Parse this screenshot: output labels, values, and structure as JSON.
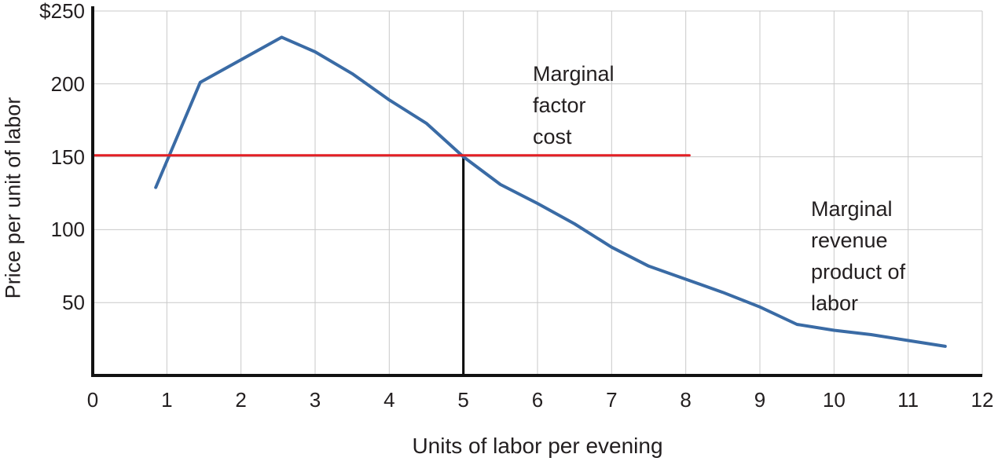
{
  "chart_data": {
    "type": "line",
    "title": "",
    "xlabel": "Units of labor per evening",
    "ylabel": "Price per unit of labor",
    "xlim": [
      0,
      12
    ],
    "ylim": [
      0,
      250
    ],
    "x_ticks": [
      0,
      1,
      2,
      3,
      4,
      5,
      6,
      7,
      8,
      9,
      10,
      11,
      12
    ],
    "x_tick_labels": [
      "0",
      "1",
      "2",
      "3",
      "4",
      "5",
      "6",
      "7",
      "8",
      "9",
      "10",
      "11",
      "12"
    ],
    "y_ticks": [
      50,
      100,
      150,
      200,
      250
    ],
    "y_tick_labels": [
      "50",
      "100",
      "150",
      "200",
      "$250"
    ],
    "grid": true,
    "grid_color": "#c9c9c9",
    "axis_color": "#121212",
    "legend_position": "none",
    "series": [
      {
        "name": "Marginal revenue product of labor",
        "data_name": "mrp-curve",
        "color": "#3a6ba5",
        "width": 4,
        "points": [
          [
            0.85,
            129
          ],
          [
            1.45,
            201
          ],
          [
            2.55,
            232
          ],
          [
            3,
            222
          ],
          [
            3.5,
            207
          ],
          [
            4,
            189
          ],
          [
            4.5,
            173
          ],
          [
            5,
            150
          ],
          [
            5.5,
            131
          ],
          [
            6,
            118
          ],
          [
            6.5,
            104
          ],
          [
            7,
            88
          ],
          [
            7.5,
            75
          ],
          [
            8,
            66
          ],
          [
            8.5,
            57
          ],
          [
            9,
            47
          ],
          [
            9.5,
            35
          ],
          [
            10,
            31
          ],
          [
            10.5,
            28
          ],
          [
            11,
            24
          ],
          [
            11.5,
            20
          ]
        ]
      },
      {
        "name": "Marginal factor cost",
        "data_name": "mfc-line",
        "color": "#e31e24",
        "width": 3,
        "points": [
          [
            0,
            151
          ],
          [
            8.05,
            151
          ]
        ]
      }
    ],
    "reference_lines": [
      {
        "type": "vertical",
        "x": 5,
        "from_y": 0,
        "to_y": 151,
        "color": "#000000",
        "width": 3
      }
    ],
    "annotations": [
      {
        "text": "Marginal\nfactor\ncost",
        "near": "above MFC line, x ≈ 6"
      },
      {
        "text": "Marginal\nrevenue\nproduct of\nlabor",
        "near": "right side, beside MRP curve tail"
      }
    ]
  },
  "labels": {
    "xlabel": "Units of labor per evening",
    "ylabel": "Price per unit of labor",
    "mfc_annotation": "Marginal\nfactor\ncost",
    "mrp_annotation": "Marginal\nrevenue\nproduct of\nlabor"
  }
}
